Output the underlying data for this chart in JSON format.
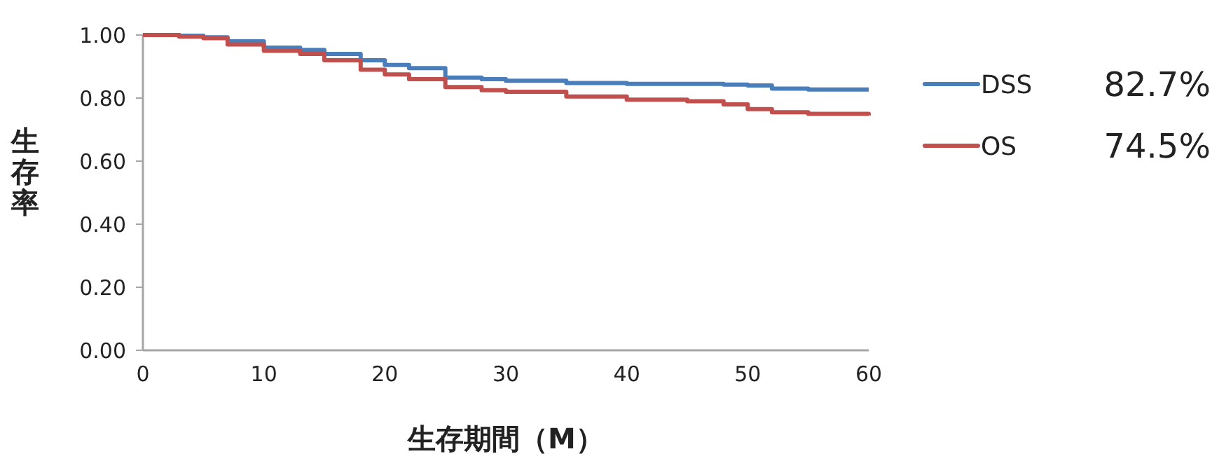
{
  "chart_data": {
    "type": "step",
    "xlabel": "生存期間（M）",
    "ylabel": "生存率",
    "xlim": [
      0,
      60
    ],
    "xticks": [
      0,
      10,
      20,
      30,
      40,
      50,
      60
    ],
    "ylim": [
      0,
      1
    ],
    "yticks": [
      {
        "value": 0,
        "label": "0.00"
      },
      {
        "value": 0.2,
        "label": "0.20"
      },
      {
        "value": 0.4,
        "label": "0.40"
      },
      {
        "value": 0.6,
        "label": "0.60"
      },
      {
        "value": 0.8,
        "label": "0.80"
      },
      {
        "value": 1,
        "label": "1.00"
      }
    ],
    "x": [
      0,
      3,
      5,
      7,
      10,
      13,
      15,
      18,
      20,
      22,
      25,
      28,
      30,
      35,
      40,
      45,
      48,
      50,
      52,
      55,
      60
    ],
    "series": [
      {
        "name": "DSS",
        "color": "#4a7ebb",
        "values": [
          1,
          0.998,
          0.993,
          0.98,
          0.96,
          0.953,
          0.94,
          0.92,
          0.905,
          0.895,
          0.865,
          0.86,
          0.855,
          0.848,
          0.845,
          0.845,
          0.843,
          0.84,
          0.83,
          0.827,
          0.827
        ]
      },
      {
        "name": "OS",
        "color": "#c0504d",
        "values": [
          1,
          0.995,
          0.99,
          0.97,
          0.95,
          0.94,
          0.92,
          0.89,
          0.875,
          0.86,
          0.835,
          0.825,
          0.82,
          0.805,
          0.795,
          0.79,
          0.78,
          0.765,
          0.755,
          0.75,
          0.745
        ]
      }
    ],
    "annotations": [
      "82.7%",
      "74.5%"
    ],
    "grid": false,
    "legend": "right"
  }
}
